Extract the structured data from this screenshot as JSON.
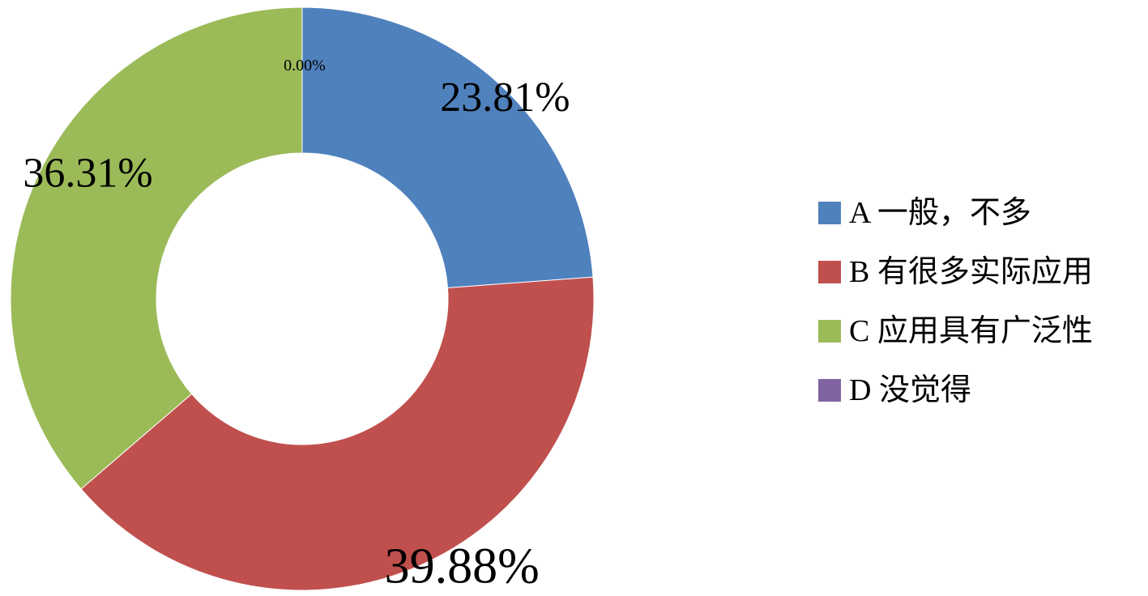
{
  "chart_data": {
    "type": "pie",
    "style": "donut",
    "categories": [
      "A 一般，不多",
      "B 有很多实际应用",
      "C 应用具有广泛性",
      "D 没觉得"
    ],
    "values": [
      23.81,
      39.88,
      36.31,
      0.0
    ],
    "data_labels": [
      "23.81%",
      "39.88%",
      "36.31%",
      "0.00%"
    ],
    "colors": [
      "#4F81BD",
      "#C0504D",
      "#9BBB59",
      "#8064A2"
    ],
    "title": "",
    "legend_position": "right"
  }
}
